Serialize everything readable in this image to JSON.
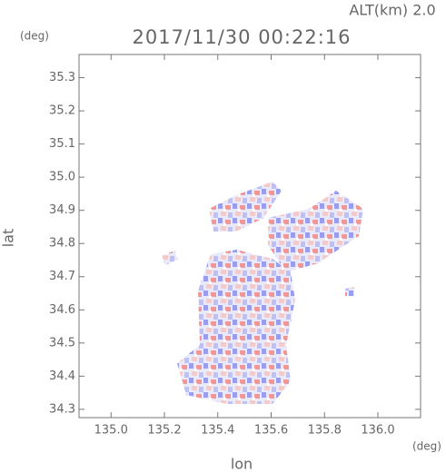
{
  "chart_data": {
    "type": "map",
    "title": "2017/11/30 00:22:16",
    "altitude_label": "ALT(km) 2.0",
    "x_label": "lon",
    "y_label": "lat",
    "x_unit": "(deg)",
    "y_unit": "(deg)",
    "xlim": [
      134.88,
      136.16
    ],
    "ylim": [
      34.275,
      35.37
    ],
    "xticks": [
      {
        "value": 135.0,
        "label": "135.0"
      },
      135.2,
      135.4,
      135.6,
      135.8,
      {
        "value": 136.0,
        "label": "136.0"
      }
    ],
    "yticks": [
      34.3,
      34.4,
      34.5,
      34.6,
      34.7,
      34.8,
      34.9,
      {
        "value": 35.0,
        "label": "35.0"
      },
      35.1,
      35.2,
      35.3
    ]
  }
}
